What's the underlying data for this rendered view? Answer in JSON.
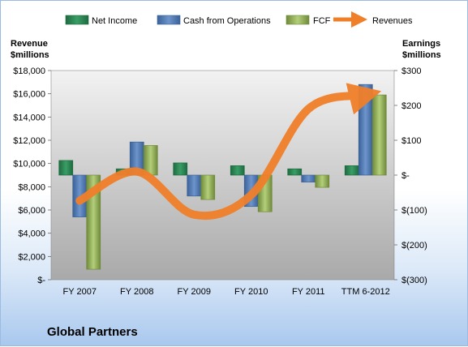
{
  "chart_data": {
    "type": "bar",
    "title": "Global Partners",
    "categories": [
      "FY 2007",
      "FY 2008",
      "FY 2009",
      "FY 2010",
      "FY 2011",
      "TTM 6-2012"
    ],
    "left_axis": {
      "label_line1": "Revenue",
      "label_line2": "$millions",
      "ylim": [
        0,
        18000
      ],
      "ticks": [
        0,
        2000,
        4000,
        6000,
        8000,
        10000,
        12000,
        14000,
        16000,
        18000
      ],
      "tick_labels": [
        "$-",
        "$2,000",
        "$4,000",
        "$6,000",
        "$8,000",
        "$10,000",
        "$12,000",
        "$14,000",
        "$16,000",
        "$18,000"
      ]
    },
    "right_axis": {
      "label_line1": "Earnings",
      "label_line2": "$millions",
      "ylim": [
        -300,
        300
      ],
      "ticks": [
        -300,
        -200,
        -100,
        0,
        100,
        200,
        300
      ],
      "tick_labels": [
        "$(300)",
        "$(200)",
        "$(100)",
        "$-",
        "$100",
        "$200",
        "$300"
      ]
    },
    "series": [
      {
        "name": "Net Income",
        "type": "bar",
        "axis": "right",
        "color": "#2e8b57",
        "values": [
          42,
          18,
          35,
          27,
          18,
          27
        ]
      },
      {
        "name": "Cash from Operations",
        "type": "bar",
        "axis": "right",
        "color": "#4f81bd",
        "values": [
          -120,
          95,
          -60,
          -90,
          -20,
          260
        ]
      },
      {
        "name": "FCF",
        "type": "bar",
        "axis": "right",
        "color": "#9bbb59",
        "values": [
          -270,
          85,
          -70,
          -105,
          -35,
          230
        ]
      },
      {
        "name": "Revenues",
        "type": "line",
        "axis": "left",
        "color": "#f07f2a",
        "values": [
          6800,
          9300,
          5600,
          7300,
          14700,
          15900
        ]
      }
    ],
    "legend_position": "top",
    "grid": false
  }
}
